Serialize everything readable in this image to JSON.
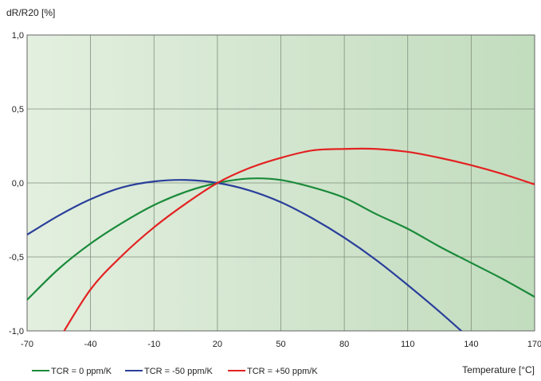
{
  "chart_data": {
    "type": "line",
    "title": "",
    "ylabel": "dR/R20 [%]",
    "xlabel": "Temperature [°C]",
    "xlim": [
      -70,
      170
    ],
    "ylim": [
      -1.0,
      1.0
    ],
    "x_ticks": [
      -70,
      -40,
      -10,
      20,
      50,
      80,
      110,
      140,
      170
    ],
    "x_tick_labels": [
      "-70",
      "-40",
      "-10",
      "20",
      "50",
      "80",
      "110",
      "140",
      "170"
    ],
    "y_ticks": [
      1.0,
      0.5,
      0.0,
      -0.5,
      -1.0
    ],
    "y_tick_labels": [
      "1,0",
      "0,5",
      "0,0",
      "-0,5",
      "-1,0"
    ],
    "grid": true,
    "legend_position": "bottom-left",
    "background": {
      "from": "#e3efdf",
      "to": "#c2dcbe"
    },
    "x": [
      -70,
      -55,
      -40,
      -25,
      -10,
      5,
      20,
      35,
      50,
      65,
      80,
      95,
      110,
      125,
      140,
      155,
      170
    ],
    "series": [
      {
        "name": "TCR = 0 ppm/K",
        "color": "#1a8a3a",
        "values": [
          -0.79,
          -0.58,
          -0.41,
          -0.27,
          -0.15,
          -0.06,
          0.0,
          0.03,
          0.02,
          -0.03,
          -0.1,
          -0.21,
          -0.31,
          -0.43,
          -0.54,
          -0.65,
          -0.77
        ]
      },
      {
        "name": "TCR =  -50 ppm/K",
        "color": "#2a3f9a",
        "values": [
          -0.35,
          -0.22,
          -0.11,
          -0.03,
          0.01,
          0.02,
          0.0,
          -0.05,
          -0.13,
          -0.24,
          -0.37,
          -0.52,
          -0.69,
          -0.87,
          -1.06,
          null,
          null
        ]
      },
      {
        "name": "TCR =  +50 ppm/K",
        "color": "#e32222",
        "values": [
          null,
          -1.06,
          -0.72,
          -0.49,
          -0.3,
          -0.14,
          0.0,
          0.1,
          0.17,
          0.22,
          0.23,
          0.23,
          0.21,
          0.17,
          0.12,
          0.06,
          -0.01
        ]
      }
    ]
  }
}
